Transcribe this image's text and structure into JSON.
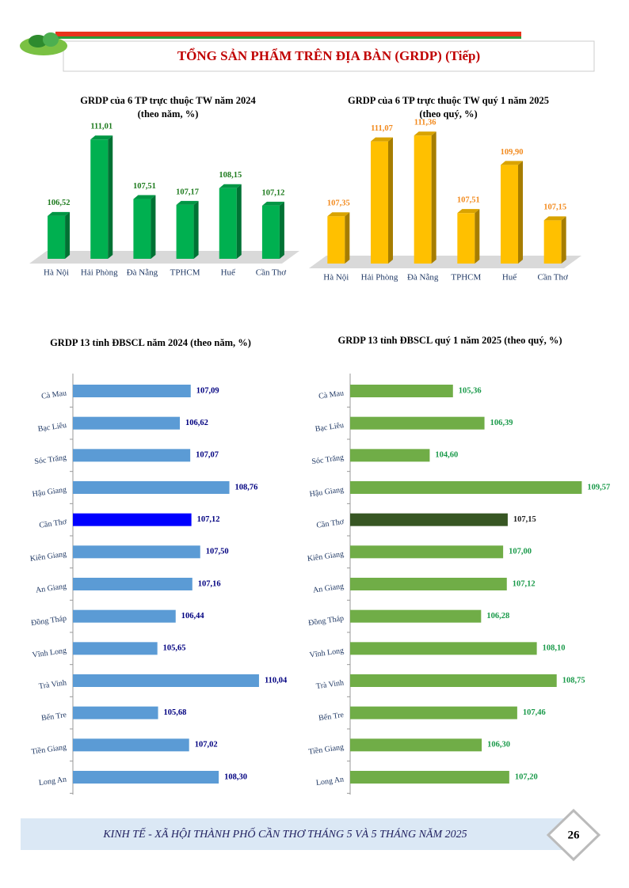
{
  "header": {
    "title": "TỔNG SẢN PHẨM TRÊN ĐỊA BÀN (GRDP) (Tiếp)"
  },
  "chart_data": [
    {
      "type": "bar",
      "title": "GRDP của 6 TP trực thuộc TW năm 2024",
      "subtitle": "(theo năm, %)",
      "categories": [
        "Hà Nội",
        "Hải Phòng",
        "Đà Nẵng",
        "TPHCM",
        "Huế",
        "Cần Thơ"
      ],
      "values": [
        106.52,
        111.01,
        107.51,
        107.17,
        108.15,
        107.12
      ],
      "value_labels": [
        "106,52",
        "111,01",
        "107,51",
        "107,17",
        "108,15",
        "107,12"
      ],
      "color": "#00b050",
      "label_color": "#1e7b1e",
      "ylim": [
        104,
        112
      ]
    },
    {
      "type": "bar",
      "title": "GRDP của 6 TP trực thuộc TW quý 1 năm 2025",
      "subtitle": "(theo quý, %)",
      "categories": [
        "Hà Nội",
        "Hải Phòng",
        "Đà Nẵng",
        "TPHCM",
        "Huế",
        "Cần Thơ"
      ],
      "values": [
        107.35,
        111.07,
        111.36,
        107.51,
        109.9,
        107.15
      ],
      "value_labels": [
        "107,35",
        "111,07",
        "111,36",
        "107,51",
        "109,90",
        "107,15"
      ],
      "color": "#ffc000",
      "label_color": "#f28a1e",
      "ylim": [
        105,
        112
      ]
    },
    {
      "type": "barh",
      "title": "GRDP 13 tỉnh ĐBSCL năm 2024 (theo năm, %)",
      "categories": [
        "Cà Mau",
        "Bạc Liêu",
        "Sóc Trăng",
        "Hậu Giang",
        "Cần Thơ",
        "Kiên Giang",
        "An Giang",
        "Đồng Tháp",
        "Vĩnh Long",
        "Trà Vinh",
        "Bến Tre",
        "Tiền Giang",
        "Long An"
      ],
      "values": [
        107.09,
        106.62,
        107.07,
        108.76,
        107.12,
        107.5,
        107.16,
        106.44,
        105.65,
        110.04,
        105.68,
        107.02,
        108.3
      ],
      "value_labels": [
        "107,09",
        "106,62",
        "107,07",
        "108,76",
        "107,12",
        "107,50",
        "107,16",
        "106,44",
        "105,65",
        "110,04",
        "105,68",
        "107,02",
        "108,30"
      ],
      "colors": [
        "#5b9bd5",
        "#5b9bd5",
        "#5b9bd5",
        "#5b9bd5",
        "#0000ff",
        "#5b9bd5",
        "#5b9bd5",
        "#5b9bd5",
        "#5b9bd5",
        "#5b9bd5",
        "#5b9bd5",
        "#5b9bd5",
        "#5b9bd5"
      ],
      "label_color": "#000080",
      "xlim": [
        102,
        111
      ]
    },
    {
      "type": "barh",
      "title": "GRDP 13 tỉnh ĐBSCL quý 1 năm 2025 (theo quý, %)",
      "categories": [
        "Cà Mau",
        "Bạc Liêu",
        "Sóc Trăng",
        "Hậu Giang",
        "Cần Thơ",
        "Kiên Giang",
        "An Giang",
        "Đồng Tháp",
        "Vĩnh Long",
        "Trà Vinh",
        "Bến Tre",
        "Tiền Giang",
        "Long An"
      ],
      "values": [
        105.36,
        106.39,
        104.6,
        109.57,
        107.15,
        107.0,
        107.12,
        106.28,
        108.1,
        108.75,
        107.46,
        106.3,
        107.2
      ],
      "value_labels": [
        "105,36",
        "106,39",
        "104,60",
        "109,57",
        "107,15",
        "107,00",
        "107,12",
        "106,28",
        "108,10",
        "108,75",
        "107,46",
        "106,30",
        "107,20"
      ],
      "colors": [
        "#70ad47",
        "#70ad47",
        "#70ad47",
        "#70ad47",
        "#375623",
        "#70ad47",
        "#70ad47",
        "#70ad47",
        "#70ad47",
        "#70ad47",
        "#70ad47",
        "#70ad47",
        "#70ad47"
      ],
      "label_color": "#1a9a4a",
      "xlim": [
        102,
        110
      ]
    }
  ],
  "footer": {
    "text": "KINH TẾ - XÃ HỘI THÀNH PHỐ CẦN THƠ THÁNG 5 VÀ 5 THÁNG NĂM 2025",
    "page": "26"
  }
}
